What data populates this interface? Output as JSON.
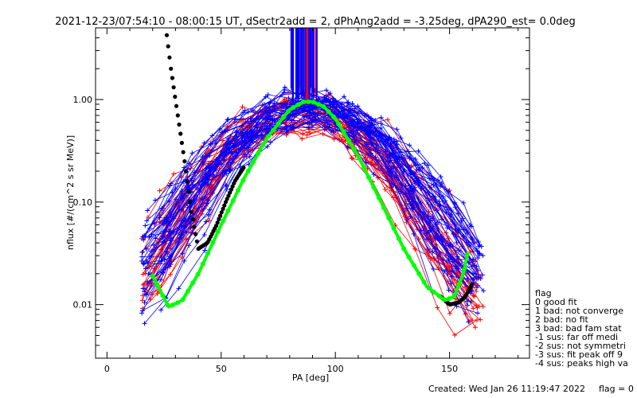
{
  "chart_data": {
    "type": "scatter",
    "title": "2021-12-23/07:54:10 - 08:00:15 UT, dSectr2add = 2, dPhAng2add = -3.25deg, dPA290_est=    0.0deg",
    "xlabel": "PA [deg]",
    "ylabel": "nflux [#/(cm^2 s sr MeV)]",
    "xlim": [
      -5,
      185
    ],
    "ylim": [
      0.003,
      5.0
    ],
    "yscale": "log",
    "grid": false,
    "x_ticks": [
      {
        "v": 0,
        "label": "0"
      },
      {
        "v": 50,
        "label": "50"
      },
      {
        "v": 100,
        "label": "100"
      },
      {
        "v": 150,
        "label": "150"
      }
    ],
    "y_ticks": [
      {
        "v": 0.01,
        "label": "0.01"
      },
      {
        "v": 0.1,
        "label": "0.10"
      },
      {
        "v": 1.0,
        "label": "1.00"
      }
    ],
    "series": [
      {
        "color": "#ff0000",
        "x_range": [
          15,
          165
        ],
        "peak_x": 86,
        "peak_y": 0.85,
        "base_y": 0.009,
        "n_curves": 35
      },
      {
        "color": "#0000ff",
        "x_range": [
          15,
          168
        ],
        "peak_x": 88,
        "peak_y": 0.95,
        "base_y": 0.011,
        "n_curves": 45
      },
      {
        "color": "#00ff00",
        "x": [
          20,
          27,
          33,
          40,
          50,
          60,
          70,
          80,
          86,
          90,
          95,
          100,
          110,
          120,
          130,
          140,
          148,
          152,
          156,
          158
        ],
        "y": [
          0.019,
          0.0095,
          0.011,
          0.02,
          0.06,
          0.17,
          0.42,
          0.8,
          0.95,
          0.95,
          0.85,
          0.65,
          0.28,
          0.1,
          0.035,
          0.015,
          0.011,
          0.012,
          0.02,
          0.032
        ]
      },
      {
        "color": "#000000",
        "x": [
          25,
          28,
          31,
          34,
          37,
          40,
          44,
          48,
          52,
          56,
          60,
          146,
          150,
          154,
          157,
          160
        ],
        "y": [
          7.0,
          2.0,
          0.7,
          0.25,
          0.08,
          0.035,
          0.04,
          0.06,
          0.1,
          0.16,
          0.22,
          0.012,
          0.01,
          0.0105,
          0.012,
          0.016
        ]
      }
    ]
  },
  "legend": {
    "title": "flag",
    "items": [
      " 0 good fit",
      " 1 bad: not converge",
      " 2 bad: no fit",
      " 3 bad: bad fam stat",
      "-1 sus: far off medi",
      "-2 sus: not symmetri",
      "-3 sus: fit peak off 9",
      "-4 sus: peaks high va"
    ]
  },
  "footer": {
    "created": "Created: Wed Jan 26 11:19:47 2022",
    "flag": "flag = 0"
  }
}
